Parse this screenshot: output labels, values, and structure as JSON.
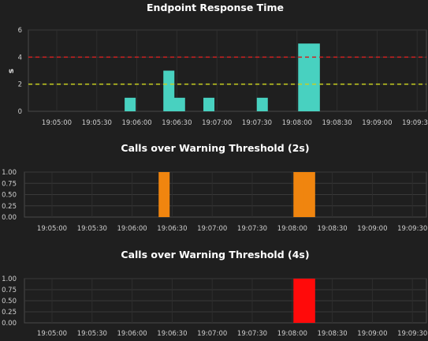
{
  "chart_data": [
    {
      "type": "bar",
      "title": "Endpoint Response Time",
      "xlabel": "",
      "ylabel": "s",
      "ylim": [
        0,
        6
      ],
      "yticks": [
        "0",
        "2",
        "4",
        "6"
      ],
      "xticks": [
        "19:05:00",
        "19:05:30",
        "19:06:00",
        "19:06:30",
        "19:07:00",
        "19:07:30",
        "19:08:00",
        "19:08:30",
        "19:09:00",
        "19:09:30"
      ],
      "bar_color": "#48d1c0",
      "grid": true,
      "thresholds": [
        {
          "value": 4,
          "color": "#d02020",
          "style": "dashed"
        },
        {
          "value": 2,
          "color": "#c8d020",
          "style": "dashed"
        }
      ],
      "series": [
        {
          "x": [
            "19:05:55",
            "19:06:24",
            "19:06:32",
            "19:06:54",
            "19:07:34",
            "19:08:05",
            "19:08:13"
          ],
          "values": [
            1,
            3,
            1,
            1,
            1,
            5,
            5
          ]
        }
      ]
    },
    {
      "type": "bar",
      "title": "Calls over Warning Threshold (2s)",
      "xlabel": "",
      "ylabel": "",
      "ylim": [
        0,
        1.0
      ],
      "yticks": [
        "0.00",
        "0.25",
        "0.50",
        "0.75",
        "1.00"
      ],
      "xticks": [
        "19:05:00",
        "19:05:30",
        "19:06:00",
        "19:06:30",
        "19:07:00",
        "19:07:30",
        "19:08:00",
        "19:08:30",
        "19:09:00",
        "19:09:30"
      ],
      "bar_color": "#f0850f",
      "grid": true,
      "series": [
        {
          "x": [
            "19:06:24",
            "19:08:05",
            "19:08:13"
          ],
          "values": [
            1,
            1,
            1
          ]
        }
      ]
    },
    {
      "type": "bar",
      "title": "Calls over Warning Threshold (4s)",
      "xlabel": "",
      "ylabel": "",
      "ylim": [
        0,
        1.0
      ],
      "yticks": [
        "0.00",
        "0.25",
        "0.50",
        "0.75",
        "1.00"
      ],
      "xticks": [
        "19:05:00",
        "19:05:30",
        "19:06:00",
        "19:06:30",
        "19:07:00",
        "19:07:30",
        "19:08:00",
        "19:08:30",
        "19:09:00",
        "19:09:30"
      ],
      "bar_color": "#ff0a0a",
      "grid": true,
      "series": [
        {
          "x": [
            "19:08:05",
            "19:08:13"
          ],
          "values": [
            1,
            1
          ]
        }
      ]
    }
  ]
}
